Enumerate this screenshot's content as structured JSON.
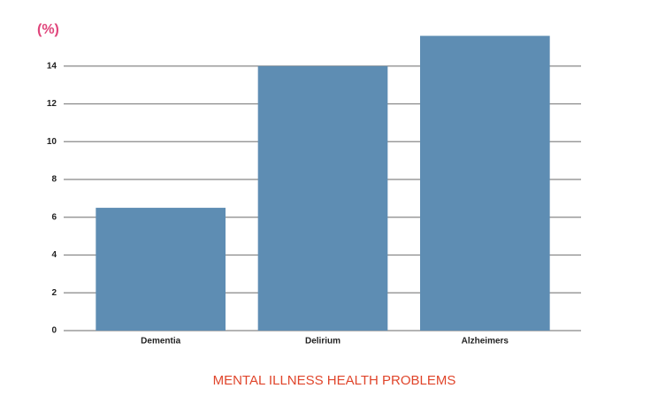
{
  "chart_data": {
    "type": "bar",
    "y_label": "(%)",
    "x_label": "MENTAL ILLNESS HEALTH PROBLEMS",
    "categories": [
      "Dementia",
      "Delirium",
      "Alzheimers"
    ],
    "values": [
      6.5,
      14.0,
      15.6
    ],
    "color": "#5e8db3",
    "ylim": [
      0,
      16
    ],
    "yticks": [
      0,
      2,
      4,
      6,
      8,
      10,
      12,
      14
    ],
    "grid": true
  }
}
